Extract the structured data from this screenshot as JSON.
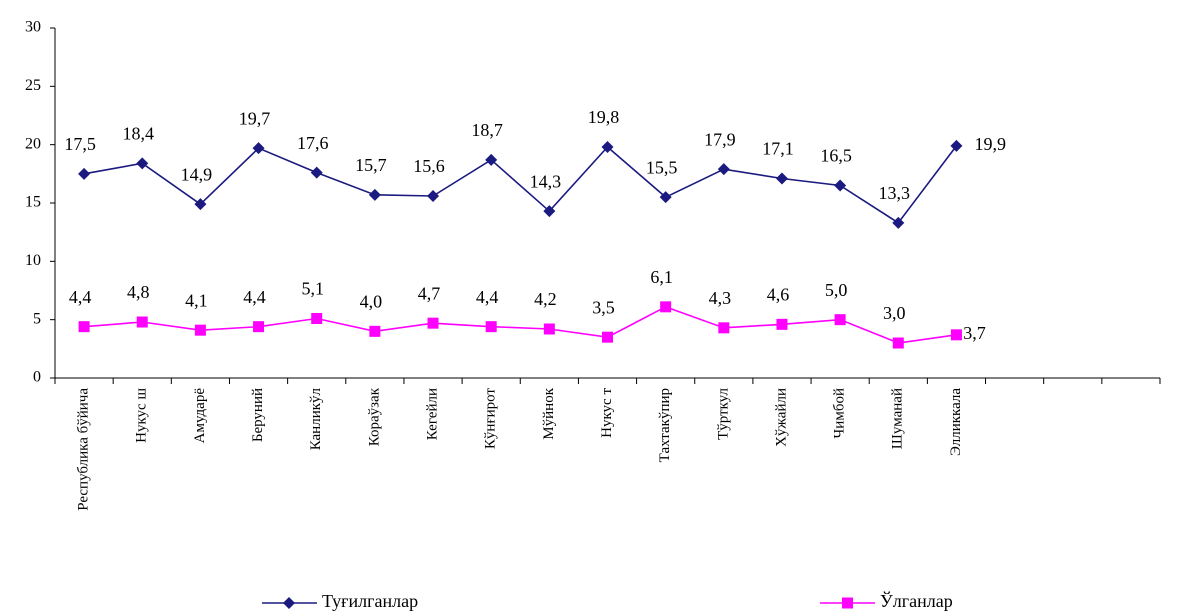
{
  "chart_data": {
    "type": "line",
    "categories": [
      "Республика бўйича",
      "Нукус ш",
      "Амударё",
      "Беруний",
      "Канликўл",
      "Кораўзак",
      "Кегейли",
      "Кўнғирот",
      "Мўйнок",
      "Нукус т",
      "Тахтакўпир",
      "Тўрткул",
      "Хўжайли",
      "Чимбой",
      "Шуманай",
      "Элликкала",
      null,
      null,
      null
    ],
    "series": [
      {
        "name": "Туғилганлар",
        "color": "#1a1a80",
        "marker": "diamond",
        "values": [
          17.5,
          18.4,
          14.9,
          19.7,
          17.6,
          15.7,
          15.6,
          18.7,
          14.3,
          19.8,
          15.5,
          17.9,
          17.1,
          16.5,
          13.3,
          19.9,
          null,
          null,
          null
        ],
        "value_labels": [
          "17,5",
          "18,4",
          "14,9",
          "19,7",
          "17,6",
          "15,7",
          "15,6",
          "18,7",
          "14,3",
          "19,8",
          "15,5",
          "17,9",
          "17,1",
          "16,5",
          "13,3",
          "19,9",
          null,
          null,
          null
        ]
      },
      {
        "name": "Ўлганлар",
        "color": "#ff00ff",
        "marker": "square",
        "values": [
          4.4,
          4.8,
          4.1,
          4.4,
          5.1,
          4.0,
          4.7,
          4.4,
          4.2,
          3.5,
          6.1,
          4.3,
          4.6,
          5.0,
          3.0,
          3.7,
          null,
          null,
          null
        ],
        "value_labels": [
          "4,4",
          "4,8",
          "4,1",
          "4,4",
          "5,1",
          "4,0",
          "4,7",
          "4,4",
          "4,2",
          "3,5",
          "6,1",
          "4,3",
          "4,6",
          "5,0",
          "3,0",
          "3,7",
          null,
          null,
          null
        ]
      }
    ],
    "ylim": [
      0,
      30
    ],
    "yticks": [
      0,
      5,
      10,
      15,
      20,
      25,
      30
    ],
    "grid": false,
    "legend": "bottom"
  }
}
